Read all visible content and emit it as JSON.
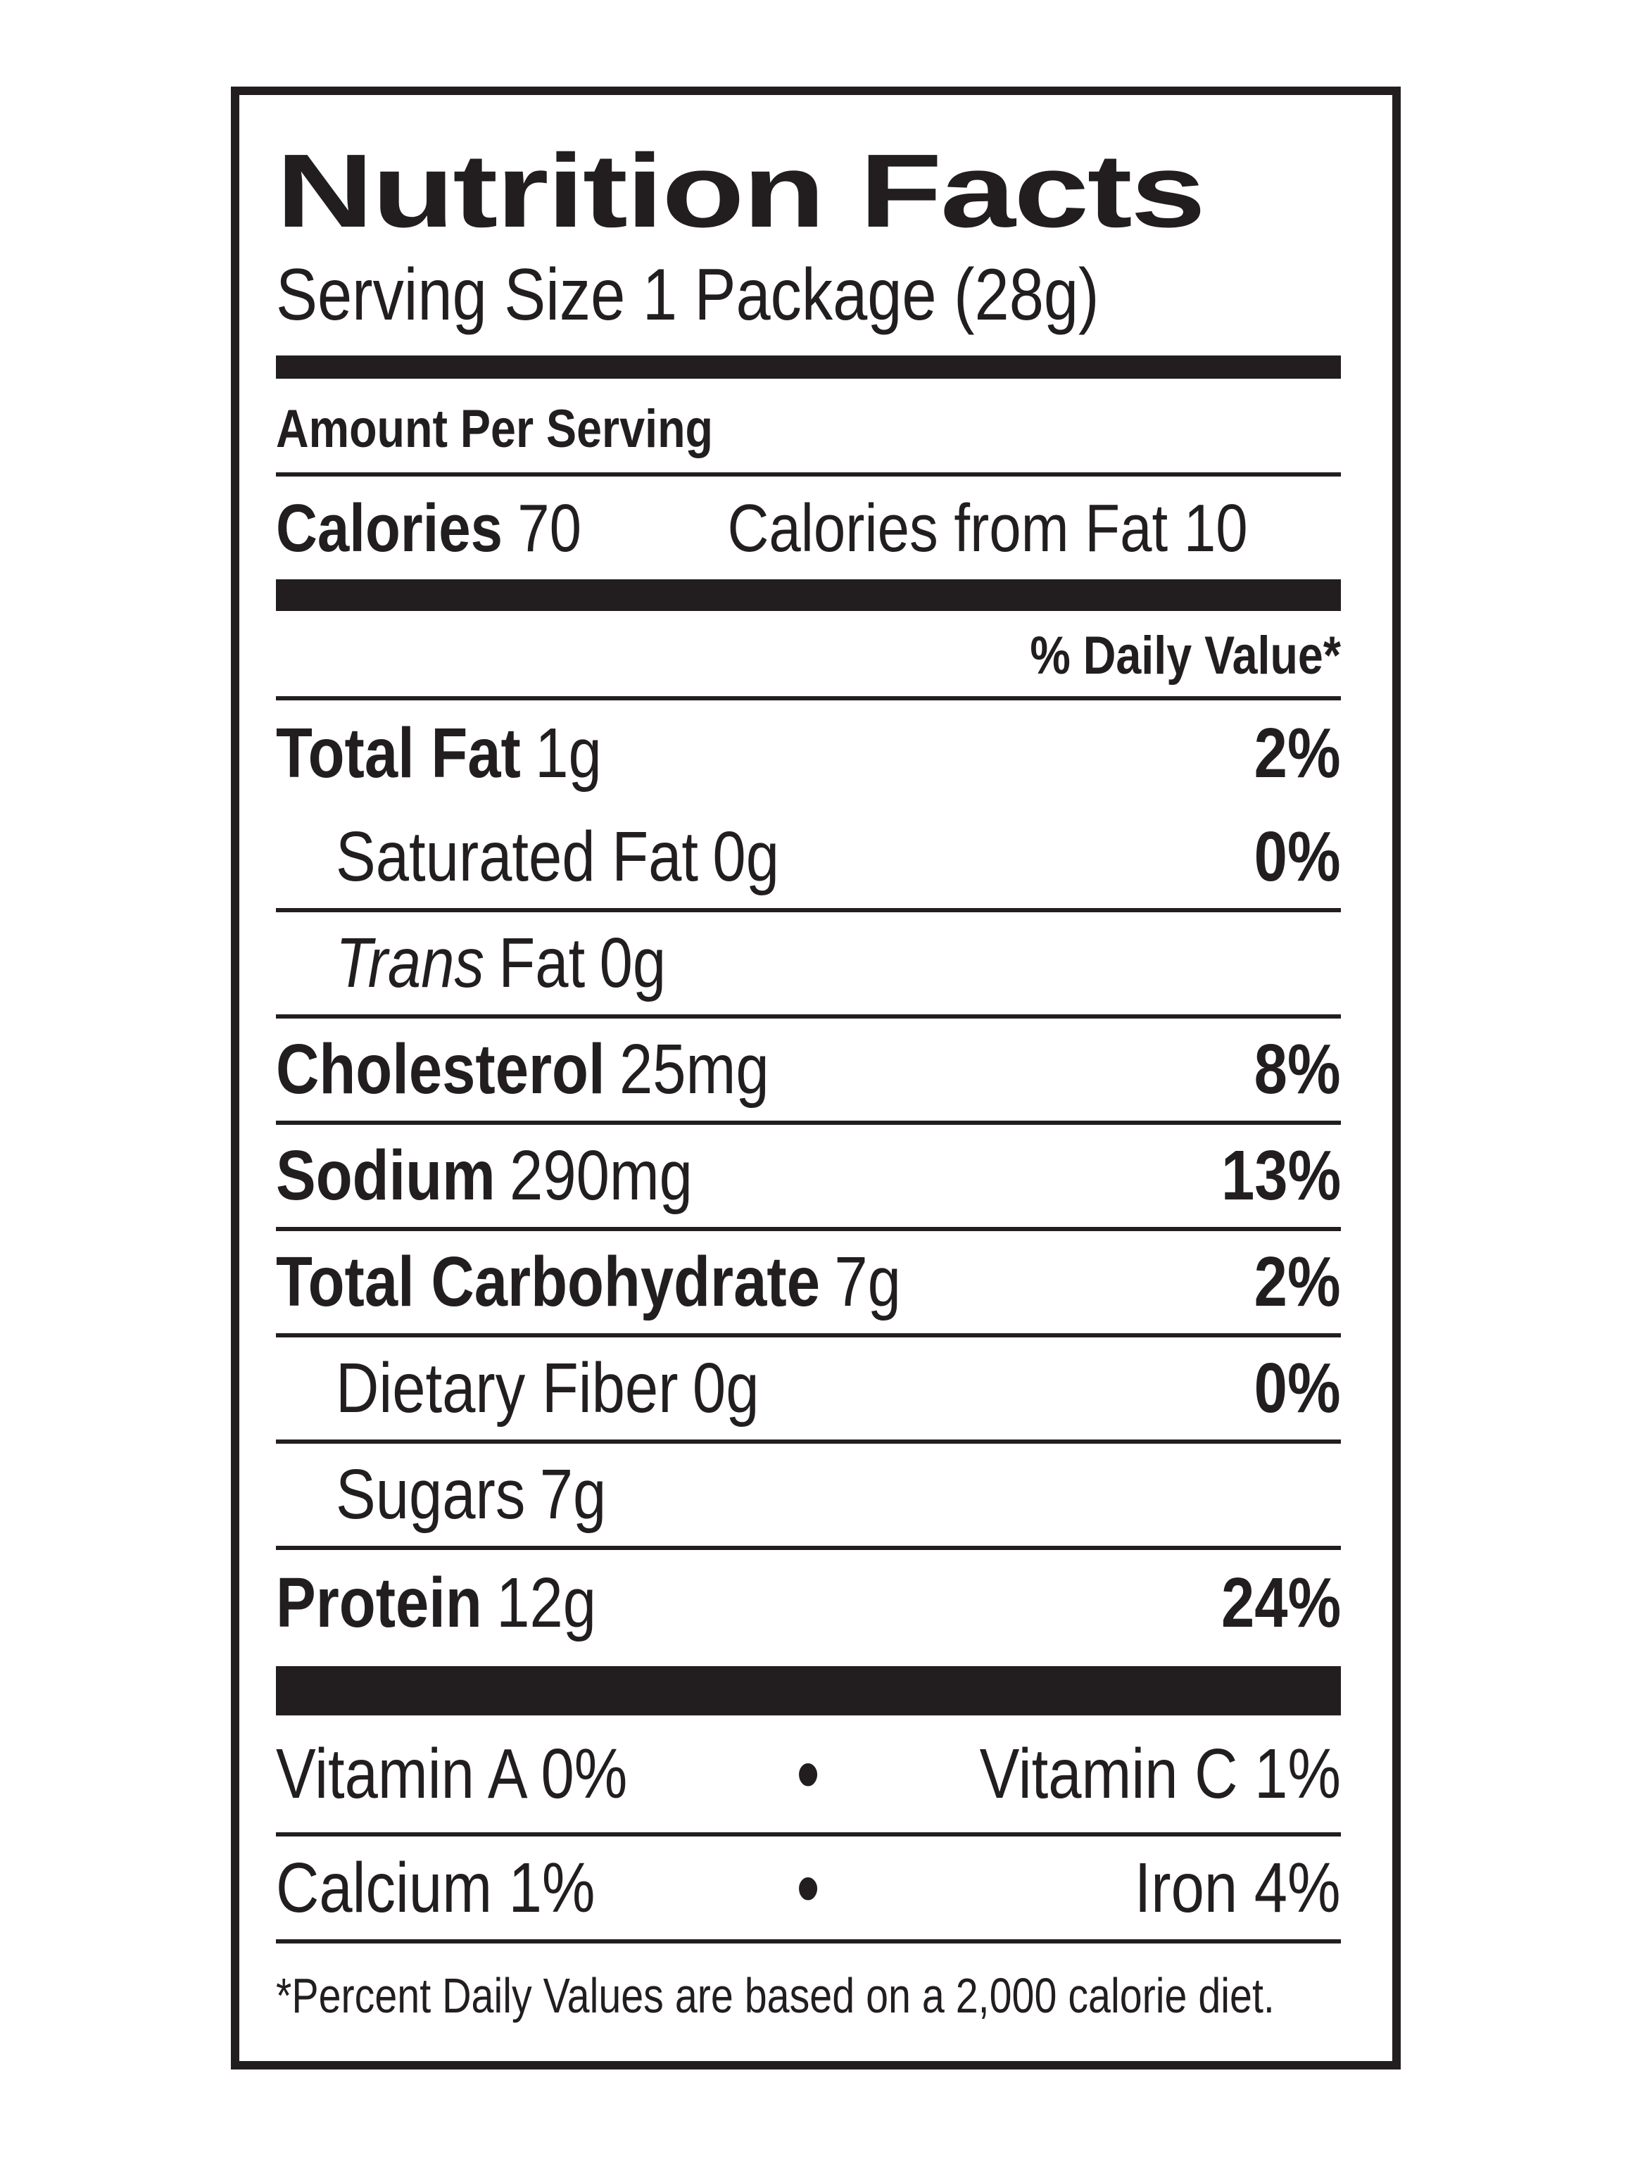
{
  "label": {
    "title": "Nutrition Facts",
    "serving_size": "Serving Size 1 Package (28g)",
    "amount_per_serving": "Amount Per Serving",
    "calories": {
      "label": "Calories",
      "value": "70",
      "from_fat": "Calories from Fat 10"
    },
    "daily_value_header": "% Daily Value*",
    "nutrients": [
      {
        "name": "Total Fat",
        "amount": "1g",
        "dv": "2%"
      },
      {
        "name": "Saturated Fat",
        "amount": "0g",
        "dv": "0%"
      },
      {
        "italic": "Trans",
        "name": "Fat",
        "amount": "0g",
        "dv": ""
      },
      {
        "name": "Cholesterol",
        "amount": "25mg",
        "dv": "8%"
      },
      {
        "name": "Sodium",
        "amount": "290mg",
        "dv": "13%"
      },
      {
        "name": "Total Carbohydrate",
        "amount": "7g",
        "dv": "2%"
      },
      {
        "name": "Dietary Fiber",
        "amount": "0g",
        "dv": "0%"
      },
      {
        "name": "Sugars",
        "amount": "7g",
        "dv": ""
      },
      {
        "name": "Protein",
        "amount": "12g",
        "dv": "24%"
      }
    ],
    "bullet": "•",
    "micronutrients": [
      {
        "left": "Vitamin A 0%",
        "right": "Vitamin C 1%"
      },
      {
        "left": "Calcium 1%",
        "right": "Iron 4%"
      }
    ],
    "footnote": "*Percent Daily Values are based on a 2,000 calorie diet.",
    "colors": {
      "ink": "#221e1f",
      "background": "#ffffff"
    }
  }
}
